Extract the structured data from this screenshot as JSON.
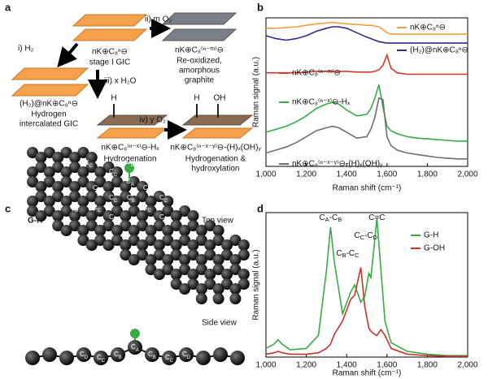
{
  "chart_data": [
    {
      "type": "line",
      "panel_label": "b",
      "xlabel": "Raman shift (cm⁻¹)",
      "ylabel": "Raman signal (a.u.)",
      "x": [
        1000,
        1050,
        1100,
        1150,
        1200,
        1250,
        1300,
        1330,
        1360,
        1400,
        1450,
        1500,
        1520,
        1540,
        1560,
        1580,
        1600,
        1620,
        1650,
        1700,
        1750,
        1800,
        1850,
        1900,
        1950,
        2000
      ],
      "series": [
        {
          "name": "nK⊕C₈ⁿ⊖",
          "color": "#f0a040",
          "values": [
            9.3,
            9.3,
            9.35,
            9.4,
            9.5,
            9.6,
            9.65,
            9.7,
            9.65,
            9.6,
            9.55,
            9.5,
            9.5,
            9.45,
            9.4,
            9.2,
            9.0,
            8.9,
            8.9,
            8.9,
            8.9,
            8.9,
            8.9,
            8.9,
            8.9,
            8.9
          ]
        },
        {
          "name": "(H₂)@nK⊕C₈ⁿ⊖",
          "color": "#2e2a8c",
          "values": [
            8.8,
            8.6,
            8.5,
            8.6,
            8.8,
            9.1,
            9.3,
            9.4,
            9.4,
            9.3,
            9.0,
            8.7,
            8.6,
            8.5,
            8.4,
            8.35,
            8.3,
            8.3,
            8.3,
            8.3,
            8.3,
            8.3,
            8.3,
            8.3,
            8.3,
            8.3
          ]
        },
        {
          "name": "nK⊕C₈⁽ⁿ⁻ᵐ⁾⊖",
          "color": "#d03a2a",
          "values": [
            6.3,
            6.3,
            6.3,
            6.3,
            6.35,
            6.4,
            6.4,
            6.4,
            6.4,
            6.4,
            6.35,
            6.35,
            6.35,
            6.4,
            6.5,
            6.8,
            7.5,
            6.6,
            6.3,
            6.2,
            6.2,
            6.2,
            6.2,
            6.2,
            6.2,
            6.2
          ]
        },
        {
          "name": "nK⊕C₈⁽ⁿ⁻ˣ⁾⊖-Hₓ",
          "color": "#3aaa48",
          "values": [
            2.3,
            2.5,
            2.7,
            3.0,
            3.4,
            3.9,
            4.2,
            4.3,
            4.2,
            3.8,
            3.4,
            3.5,
            3.9,
            4.6,
            5.5,
            4.0,
            2.7,
            2.4,
            2.2,
            2.0,
            1.9,
            1.85,
            1.8,
            1.75,
            1.7,
            1.7
          ]
        },
        {
          "name": "nK⊕C₈⁽ⁿ⁻ˣ⁻ʸ⁾⊖-(H)ₓ(OH)ᵧ",
          "color": "#6e6e6e",
          "values": [
            0.9,
            1.1,
            1.3,
            1.6,
            2.0,
            2.4,
            2.6,
            2.7,
            2.6,
            2.3,
            1.9,
            2.0,
            2.5,
            3.3,
            4.6,
            4.5,
            2.0,
            1.4,
            1.1,
            0.9,
            0.8,
            0.7,
            0.6,
            0.55,
            0.5,
            0.5
          ]
        }
      ],
      "xlim": [
        1000,
        2000
      ],
      "ylim": [
        0,
        10
      ],
      "xticks": [
        {
          "value": 1000,
          "label": "1,000"
        },
        {
          "value": 1200,
          "label": "1,200"
        },
        {
          "value": 1400,
          "label": "1,400"
        },
        {
          "value": 1600,
          "label": "1,600"
        },
        {
          "value": 1800,
          "label": "1,800"
        },
        {
          "value": 2000,
          "label": "2,000"
        }
      ]
    },
    {
      "type": "line",
      "panel_label": "d",
      "xlabel": "Raman shift (cm⁻¹)",
      "ylabel": "Raman signal (a.u.)",
      "x": [
        1000,
        1040,
        1060,
        1080,
        1120,
        1200,
        1260,
        1300,
        1320,
        1340,
        1380,
        1420,
        1440,
        1470,
        1490,
        1510,
        1520,
        1535,
        1550,
        1570,
        1590,
        1620,
        1700,
        1800,
        1900,
        2000
      ],
      "series": [
        {
          "name": "G-H",
          "color": "#3aaa48",
          "values": [
            0.6,
            0.9,
            1.2,
            0.9,
            0.5,
            0.6,
            1.5,
            6.0,
            9.0,
            6.5,
            3.0,
            4.5,
            5.0,
            3.8,
            4.2,
            5.8,
            5.5,
            7.5,
            9.6,
            6.0,
            2.5,
            1.0,
            0.4,
            0.2,
            0.1,
            0.1
          ]
        },
        {
          "name": "G-OH",
          "color": "#c8342c",
          "values": [
            0.2,
            0.3,
            0.4,
            0.3,
            0.2,
            0.2,
            0.3,
            0.6,
            0.9,
            1.6,
            2.5,
            4.0,
            4.3,
            6.2,
            3.5,
            2.0,
            1.8,
            1.6,
            1.5,
            1.9,
            1.5,
            0.6,
            0.2,
            0.1,
            0.05,
            0.05
          ]
        }
      ],
      "annotations": [
        [
          "C",
          "A",
          "-C",
          "B"
        ],
        [
          "C",
          "B",
          "-C",
          "C"
        ],
        [
          "C",
          "C",
          "-C",
          "D"
        ],
        [
          "C=C"
        ]
      ],
      "xlim": [
        1000,
        2000
      ],
      "ylim": [
        0,
        10
      ],
      "xticks": [
        {
          "value": 1000,
          "label": "1,000"
        },
        {
          "value": 1200,
          "label": "1,200"
        },
        {
          "value": 1400,
          "label": "1,400"
        },
        {
          "value": 1600,
          "label": "1,600"
        },
        {
          "value": 1800,
          "label": "1,800"
        },
        {
          "value": 2000,
          "label": "2,000"
        }
      ]
    }
  ],
  "panel_a": {
    "label": "a",
    "step_i": "i) H₂",
    "step_ii": "ii) m O₂",
    "step_iii": "iii) x H₂O",
    "step_iv": "iv) y O₂",
    "stage1_formula": "nK⊕C₈ⁿ⊖",
    "stage1_name": "stage I GIC",
    "reox_formula": "nK⊕C₈⁽ⁿ⁻ᵐ⁾⊖",
    "reox_name": [
      "Re-oxidized,",
      "amorphous",
      "graphite"
    ],
    "h2_formula": "(H₂)@nK⊕C₈ⁿ⊖",
    "h2_name": [
      "Hydrogen",
      "intercalated GIC"
    ],
    "hyd_atom": "H",
    "hyd_formula": "nK⊕C₈⁽ⁿ⁻ˣ⁾⊖-Hₓ",
    "hyd_name": "Hydrogenation",
    "hox_atoms": [
      "H",
      "OH"
    ],
    "hox_formula": "nK⊕C₈⁽ⁿ⁻ˣ⁻ʸ⁾⊖-(H)ₓ(OH)ᵧ",
    "hox_name": [
      "Hydrogenation &",
      "hydroxylation"
    ]
  },
  "panel_c": {
    "label": "c",
    "material": "G-H",
    "top_view": "Top view",
    "side_view": "Side view",
    "top_atoms": [
      [
        "C",
        "D"
      ],
      [
        "C",
        "C"
      ],
      [
        "C",
        "C"
      ],
      [
        "C",
        "D"
      ],
      [
        "C",
        "A"
      ],
      [
        "C",
        "B"
      ],
      [
        "C",
        "B"
      ],
      [
        "C",
        "C"
      ],
      [
        "C",
        "B"
      ],
      [
        "C",
        "B"
      ],
      [
        "C",
        "C"
      ],
      [
        "C",
        "C"
      ],
      [
        "C",
        "D"
      ],
      [
        "C",
        "C"
      ],
      [
        "C",
        "D"
      ],
      [
        "C",
        "C"
      ],
      [
        "C",
        "D"
      ]
    ],
    "side_atoms": [
      [
        "C",
        "D"
      ],
      [
        "C",
        "C"
      ],
      [
        "C",
        "B"
      ],
      [
        "C",
        "A"
      ],
      [
        "C",
        "B"
      ],
      [
        "C",
        "C"
      ],
      [
        "C",
        "D"
      ]
    ]
  }
}
